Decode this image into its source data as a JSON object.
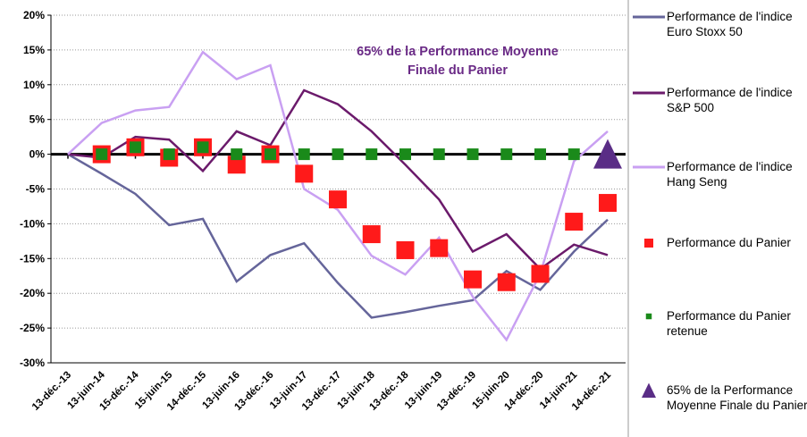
{
  "chart_data": {
    "type": "line",
    "title_lines": [
      "65% de la Performance Moyenne",
      "Finale du Panier"
    ],
    "title_color": "#6a2a86",
    "categories": [
      "13-déc.-13",
      "13-juin-14",
      "15-déc.-14",
      "15-juin-15",
      "14-déc.-15",
      "13-juin-16",
      "13-déc.-16",
      "13-juin-17",
      "13-déc.-17",
      "13-juin-18",
      "13-déc.-18",
      "13-juin-19",
      "13-déc.-19",
      "15-juin-20",
      "14-déc.-20",
      "14-juin-21",
      "14-déc.-21"
    ],
    "ylim": [
      -30,
      20
    ],
    "yticks": [
      {
        "value": -30,
        "label": "-30%"
      },
      {
        "value": -25,
        "label": "-25%"
      },
      {
        "value": -20,
        "label": "-20%"
      },
      {
        "value": -15,
        "label": "-15%"
      },
      {
        "value": -10,
        "label": "-10%"
      },
      {
        "value": -5,
        "label": "-5%"
      },
      {
        "value": 0,
        "label": "0%"
      },
      {
        "value": 5,
        "label": "5%"
      },
      {
        "value": 10,
        "label": "10%"
      },
      {
        "value": 15,
        "label": "15%"
      },
      {
        "value": 20,
        "label": "20%"
      }
    ],
    "grid": true,
    "series": [
      {
        "name": "Performance de l'indice Euro Stoxx 50",
        "mark": "line",
        "color": "#65659a",
        "values": [
          0,
          -2.8,
          -5.7,
          -10.2,
          -9.3,
          -18.3,
          -14.5,
          -12.8,
          -18.5,
          -23.5,
          -22.7,
          -21.8,
          -21,
          -16.8,
          -19.5,
          -14,
          -9.4
        ]
      },
      {
        "name": "Performance de l'indice S&P 500",
        "mark": "line",
        "color": "#6b1a6b",
        "values": [
          0,
          -0.5,
          2.5,
          2.1,
          -2.4,
          3.3,
          1.3,
          9.2,
          7.2,
          3.3,
          -1.5,
          -6.5,
          -14,
          -11.5,
          -16.5,
          -13,
          -14.5
        ]
      },
      {
        "name": "Performance de l'indice Hang Seng",
        "mark": "line",
        "color": "#c9a0f2",
        "values": [
          0,
          4.5,
          6.3,
          6.8,
          14.7,
          10.8,
          12.8,
          -5,
          -8,
          -14.6,
          -17.3,
          -12,
          -20.5,
          -26.7,
          -17.2,
          -1,
          3.3
        ]
      },
      {
        "name": "Performance du Panier",
        "mark": "square",
        "color": "#ff1a1a",
        "values": [
          null,
          0,
          1,
          -0.5,
          1,
          -1.5,
          0,
          -2.8,
          -6.5,
          -11.5,
          -13.8,
          -13.5,
          -18,
          -18.4,
          -17.2,
          -9.7,
          -7
        ]
      },
      {
        "name": "Performance du Panier retenue",
        "mark": "square-small",
        "color": "#1a8a1a",
        "values": [
          null,
          0,
          1,
          0,
          1,
          0,
          0,
          0,
          0,
          0,
          0,
          0,
          0,
          0,
          0,
          0,
          null
        ]
      },
      {
        "name": "65% de la Performance Moyenne Finale du Panier",
        "mark": "triangle",
        "color": "#5a2d86",
        "values": [
          null,
          null,
          null,
          null,
          null,
          null,
          null,
          null,
          null,
          null,
          null,
          null,
          null,
          null,
          null,
          null,
          0
        ]
      }
    ]
  }
}
